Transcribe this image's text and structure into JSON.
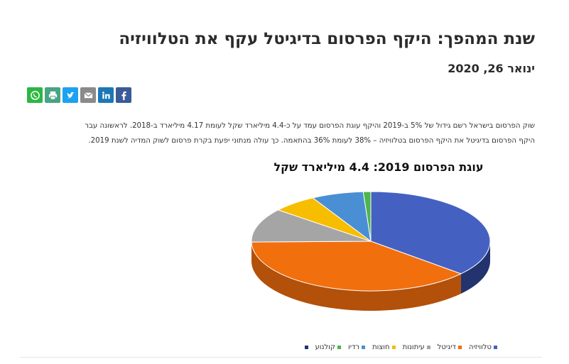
{
  "article": {
    "title": "שנת המהפך: היקף הפרסום בדיגיטל עקף את הטלוויזיה",
    "date": "ינואר 26, 2020",
    "paragraph_line1": "שוק הפרסום בישראל רשם גידול של 5% ב-2019 והיקף עוגת הפרסום עמד על כ-4.4 מיליארד שקל לעומת 4.17 מיליארד ב-2018. לראשונה עבר",
    "paragraph_line2": "היקף הפרסום בדיגיטל את היקף הפרסום בטלוויזיה – 38% לעומת 36% בהתאמה. כך עולה מנתוני יפעת בקרת פרסום לשוק המדיה לשנת 2019."
  },
  "share": {
    "icons": [
      "whatsapp-icon",
      "print-icon",
      "twitter-icon",
      "email-icon",
      "linkedin-icon",
      "facebook-icon"
    ]
  },
  "chart_data": {
    "type": "pie",
    "title": "עוגת הפרסום 2019: 4.4 מיליארד שקל",
    "categories": [
      "טלוויזיה",
      "דיגיטל",
      "עיתונות",
      "חוצות",
      "רדיו",
      "קולנוע"
    ],
    "values": [
      36,
      38,
      11,
      6,
      7,
      1
    ],
    "colors": [
      "#4461c2",
      "#f26f0e",
      "#a5a5a5",
      "#f7bd00",
      "#4a8fd3",
      "#4fb44b"
    ],
    "side_colors": [
      "#22336e",
      "#b3500a",
      "#707070",
      "#a88100",
      "#2b5c8c",
      "#2e7a2b"
    ],
    "legend_placement": "bottom",
    "legend": [
      "טלוויזיה",
      "דיגיטל",
      "עיתונות",
      "חוצות",
      "רדיו",
      "קולנוע"
    ]
  }
}
